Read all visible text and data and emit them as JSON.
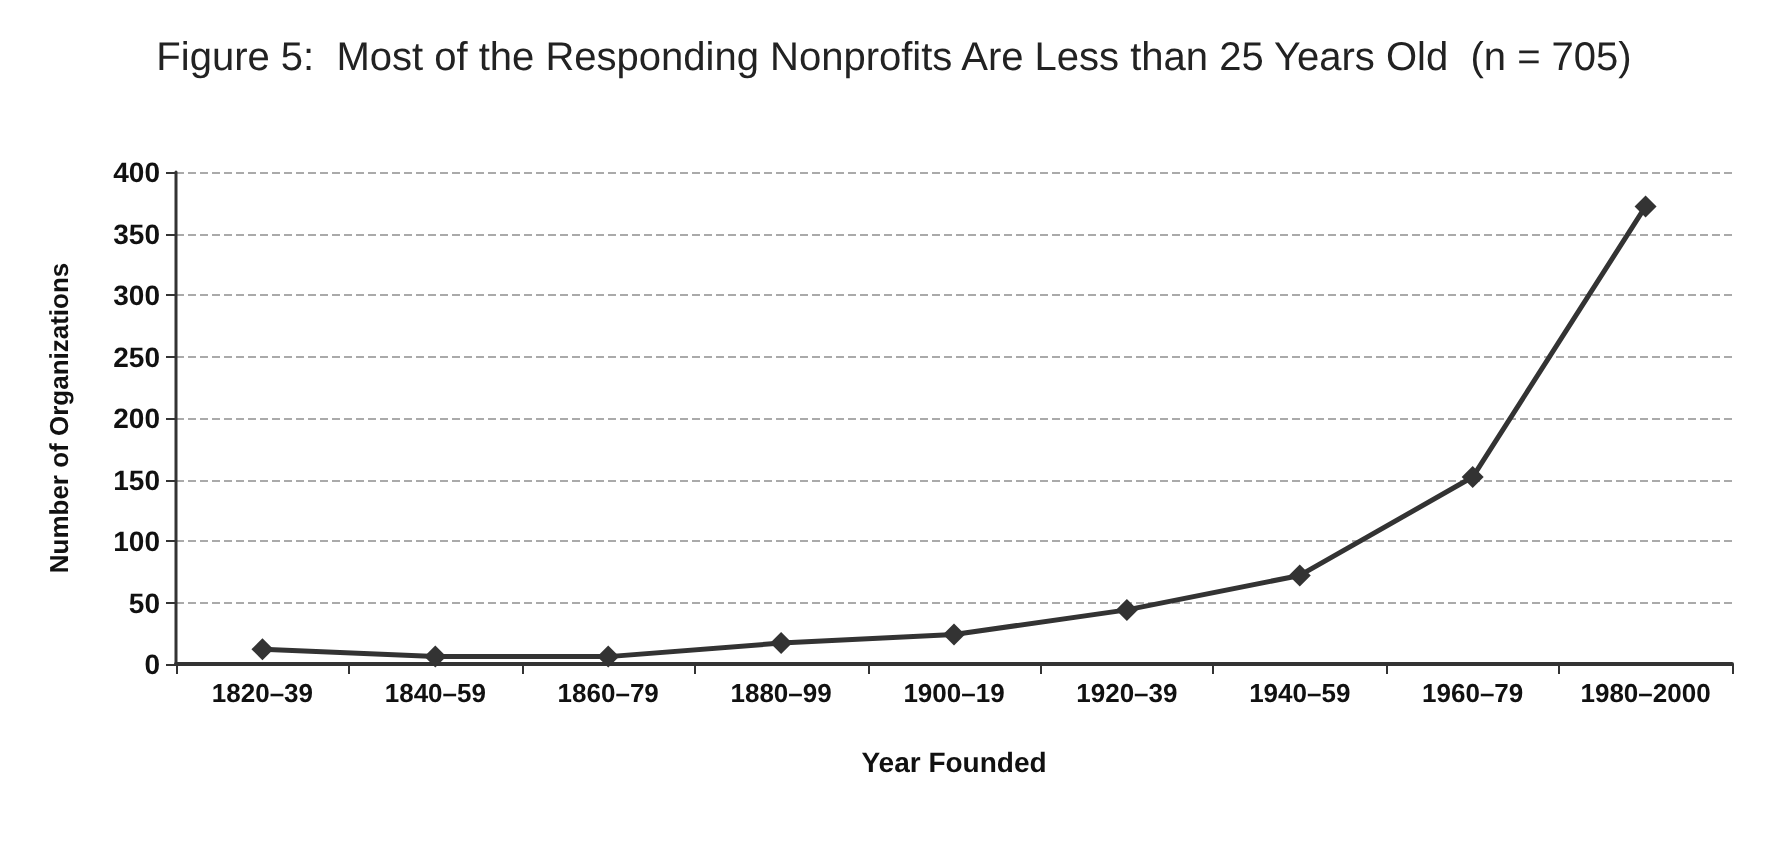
{
  "chart_data": {
    "type": "line",
    "title": "Figure 5:  Most of the Responding Nonprofits Are Less than 25 Years Old  (n = 705)",
    "xlabel": "Year Founded",
    "ylabel": "Number of Organizations",
    "categories": [
      "1820–39",
      "1840–59",
      "1860–79",
      "1880–99",
      "1900–19",
      "1920–39",
      "1940–59",
      "1960–79",
      "1980–2000"
    ],
    "series": [
      {
        "color": "#333333",
        "values": [
          12,
          6,
          6,
          17,
          24,
          44,
          72,
          152,
          372
        ]
      }
    ],
    "ylim": [
      0,
      400
    ],
    "yticks": [
      0,
      50,
      100,
      150,
      200,
      250,
      300,
      350,
      400
    ],
    "grid": "y",
    "marker": "diamond",
    "line_style": "solid"
  }
}
